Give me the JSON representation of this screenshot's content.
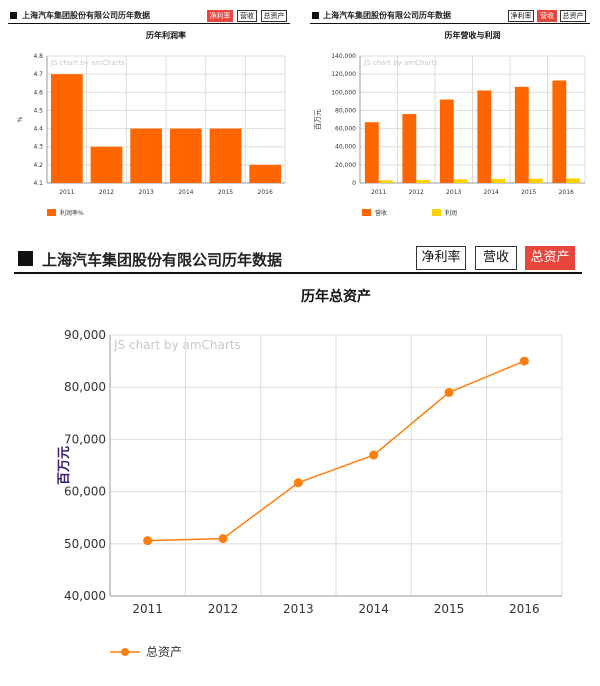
{
  "panels": [
    {
      "company_title": "上海汽车集团股份有限公司历年数据",
      "buttons": [
        {
          "label": "净利率",
          "active": true
        },
        {
          "label": "营收",
          "active": false
        },
        {
          "label": "总资产",
          "active": false
        }
      ]
    },
    {
      "company_title": "上海汽车集团股份有限公司历年数据",
      "buttons": [
        {
          "label": "净利率",
          "active": false
        },
        {
          "label": "营收",
          "active": true
        },
        {
          "label": "总资产",
          "active": false
        }
      ]
    },
    {
      "company_title": "上海汽车集团股份有限公司历年数据",
      "buttons": [
        {
          "label": "净利率",
          "active": false
        },
        {
          "label": "营收",
          "active": false
        },
        {
          "label": "总资产",
          "active": true
        }
      ]
    }
  ],
  "colors": {
    "orange": "#ff6600",
    "yellow": "#fcd202",
    "line": "#ff7f0e",
    "grid": "#dddddd",
    "active_button": "#e8453c"
  },
  "chart_data": [
    {
      "type": "bar",
      "title": "历年利润率",
      "watermark": "JS chart by amCharts",
      "xlabel": "",
      "ylabel": "%",
      "categories": [
        "2011",
        "2012",
        "2013",
        "2014",
        "2015",
        "2016"
      ],
      "series": [
        {
          "name": "利润率%",
          "values": [
            4.7,
            4.3,
            4.4,
            4.4,
            4.4,
            4.2
          ]
        }
      ],
      "ylim": [
        4.1,
        4.8
      ],
      "yticks": [
        "4.1",
        "4.2",
        "4.3",
        "4.4",
        "4.5",
        "4.6",
        "4.7",
        "4.8"
      ],
      "grid": true,
      "legend_position": "bottom-left"
    },
    {
      "type": "bar",
      "title": "历年营收与利润",
      "watermark": "JS chart by amCharts",
      "xlabel": "",
      "ylabel": "百万元",
      "categories": [
        "2011",
        "2012",
        "2013",
        "2014",
        "2015",
        "2016"
      ],
      "series": [
        {
          "name": "营收",
          "values": [
            67000,
            76000,
            92000,
            102000,
            106000,
            113000
          ]
        },
        {
          "name": "利润",
          "values": [
            3000,
            3300,
            4100,
            4500,
            4800,
            5100
          ]
        }
      ],
      "ylim": [
        0,
        140000
      ],
      "yticks": [
        "0",
        "20,000",
        "40,000",
        "60,000",
        "80,000",
        "100,000",
        "120,000",
        "140,000"
      ],
      "grid": true,
      "legend_position": "bottom-left"
    },
    {
      "type": "line",
      "title": "历年总资产",
      "watermark": "JS chart by amCharts",
      "xlabel": "",
      "ylabel": "百万元",
      "categories": [
        "2011",
        "2012",
        "2013",
        "2014",
        "2015",
        "2016"
      ],
      "series": [
        {
          "name": "总资产",
          "values": [
            50600,
            51000,
            61700,
            67000,
            79000,
            85000
          ]
        }
      ],
      "ylim": [
        40000,
        90000
      ],
      "yticks": [
        "40,000",
        "50,000",
        "60,000",
        "70,000",
        "80,000",
        "90,000"
      ],
      "grid": true,
      "legend_position": "bottom-left"
    }
  ]
}
